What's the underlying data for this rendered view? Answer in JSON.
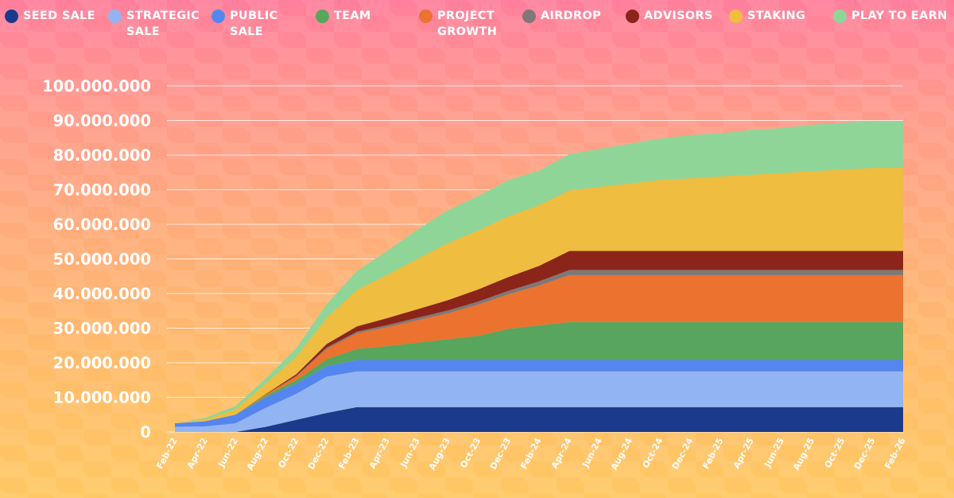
{
  "legend": [
    {
      "label": "SEED SALE",
      "color": "#1b3a8c"
    },
    {
      "label": "STRATEGIC\nSALE",
      "color": "#93b4f2"
    },
    {
      "label": "PUBLIC\nSALE",
      "color": "#5486f0"
    },
    {
      "label": "TEAM",
      "color": "#58a55e"
    },
    {
      "label": "PROJECT\nGROWTH",
      "color": "#eb722f"
    },
    {
      "label": "AIRDROP",
      "color": "#7e7878"
    },
    {
      "label": "ADVISORS",
      "color": "#8b2519"
    },
    {
      "label": "STAKING",
      "color": "#efbd3f"
    },
    {
      "label": "PLAY TO EARN",
      "color": "#90d598"
    }
  ],
  "chart_data": {
    "type": "area",
    "stacked": true,
    "title": "",
    "xlabel": "",
    "ylabel": "",
    "ylim": [
      0,
      100000000
    ],
    "grid": true,
    "legend_position": "top",
    "yticks": [
      {
        "value": 0,
        "label": "0"
      },
      {
        "value": 10000000,
        "label": "10.000.000"
      },
      {
        "value": 20000000,
        "label": "20.000.000"
      },
      {
        "value": 30000000,
        "label": "30.000.000"
      },
      {
        "value": 40000000,
        "label": "40.000.000"
      },
      {
        "value": 50000000,
        "label": "50.000.000"
      },
      {
        "value": 60000000,
        "label": "60.000.000"
      },
      {
        "value": 70000000,
        "label": "70.000.000"
      },
      {
        "value": 80000000,
        "label": "80.000.000"
      },
      {
        "value": 90000000,
        "label": "90.000.000"
      },
      {
        "value": 100000000,
        "label": "100.000.000"
      }
    ],
    "x_labels": [
      "Feb-22",
      "Apr-22",
      "Jun-22",
      "Aug-22",
      "Oct-22",
      "Dec-22",
      "Feb-23",
      "Apr-23",
      "Jun-23",
      "Aug-23",
      "Oct-23",
      "Dec-23",
      "Feb-24",
      "Apr-24",
      "Jun-24",
      "Aug-24",
      "Oct-24",
      "Dec-24",
      "Feb-25",
      "Apr-25",
      "Jun-25",
      "Aug-25",
      "Oct-25",
      "Dec-25",
      "Feb-26"
    ],
    "series": [
      {
        "name": "Seed Sale",
        "color": "#1b3a8c",
        "values": [
          0,
          0,
          0,
          1500000,
          3500000,
          5500000,
          7200000,
          7200000,
          7200000,
          7200000,
          7200000,
          7200000,
          7200000,
          7200000,
          7200000,
          7200000,
          7200000,
          7200000,
          7200000,
          7200000,
          7200000,
          7200000,
          7200000,
          7200000,
          7200000
        ]
      },
      {
        "name": "Strategic Sale",
        "color": "#93b4f2",
        "values": [
          1500000,
          1600000,
          2500000,
          5500000,
          7500000,
          10500000,
          10300000,
          10300000,
          10300000,
          10300000,
          10300000,
          10300000,
          10300000,
          10300000,
          10300000,
          10300000,
          10300000,
          10300000,
          10300000,
          10300000,
          10300000,
          10300000,
          10300000,
          10300000,
          10300000
        ]
      },
      {
        "name": "Public Sale",
        "color": "#5486f0",
        "values": [
          1000000,
          1500000,
          2500000,
          3000000,
          3000000,
          3000000,
          3300000,
          3300000,
          3300000,
          3300000,
          3300000,
          3300000,
          3300000,
          3300000,
          3300000,
          3300000,
          3300000,
          3300000,
          3300000,
          3300000,
          3300000,
          3300000,
          3300000,
          3300000,
          3300000
        ]
      },
      {
        "name": "Team",
        "color": "#58a55e",
        "values": [
          0,
          0,
          0,
          500000,
          1000000,
          2000000,
          3200000,
          4000000,
          5000000,
          6000000,
          7000000,
          9000000,
          10000000,
          11000000,
          11000000,
          11000000,
          11000000,
          11000000,
          11000000,
          11000000,
          11000000,
          11000000,
          11000000,
          11000000,
          11000000
        ]
      },
      {
        "name": "Project Growth",
        "color": "#eb722f",
        "values": [
          0,
          0,
          0,
          300000,
          1000000,
          3000000,
          4500000,
          5500000,
          6500000,
          7500000,
          9000000,
          10000000,
          11500000,
          13500000,
          13500000,
          13500000,
          13500000,
          13500000,
          13500000,
          13500000,
          13500000,
          13500000,
          13500000,
          13500000,
          13500000
        ]
      },
      {
        "name": "Airdrop",
        "color": "#7e7878",
        "values": [
          0,
          0,
          0,
          100000,
          200000,
          400000,
          500000,
          600000,
          700000,
          800000,
          900000,
          1000000,
          1200000,
          1500000,
          1500000,
          1500000,
          1500000,
          1500000,
          1500000,
          1500000,
          1500000,
          1500000,
          1500000,
          1500000,
          1500000
        ]
      },
      {
        "name": "Advisors",
        "color": "#8b2519",
        "values": [
          0,
          0,
          0,
          100000,
          500000,
          1000000,
          1500000,
          2000000,
          2500000,
          3000000,
          3500000,
          4000000,
          4500000,
          5500000,
          5500000,
          5500000,
          5500000,
          5500000,
          5500000,
          5500000,
          5500000,
          5500000,
          5500000,
          5500000,
          5500000
        ]
      },
      {
        "name": "Staking",
        "color": "#efbd3f",
        "values": [
          0,
          500000,
          1500000,
          3000000,
          5000000,
          7500000,
          10500000,
          12500000,
          14500000,
          16500000,
          17000000,
          17500000,
          17500000,
          17500000,
          18500000,
          19500000,
          20500000,
          21000000,
          21500000,
          22000000,
          22500000,
          23000000,
          23500000,
          24000000,
          24000000
        ]
      },
      {
        "name": "Play to Earn",
        "color": "#90d598",
        "values": [
          0,
          500000,
          1000000,
          1500000,
          2500000,
          4000000,
          5500000,
          7000000,
          8500000,
          9500000,
          10000000,
          10500000,
          10000000,
          10500000,
          11000000,
          11500000,
          12000000,
          12500000,
          12500000,
          13000000,
          13000000,
          13500000,
          13500000,
          13500000,
          13500000
        ]
      }
    ]
  }
}
